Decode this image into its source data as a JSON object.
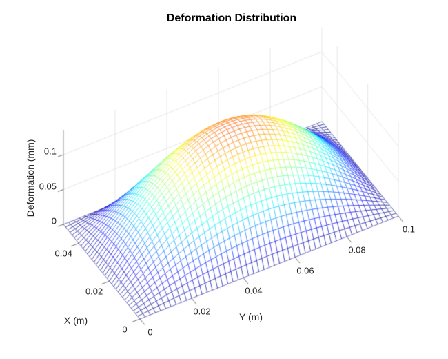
{
  "chart_data": {
    "type": "surface-mesh-3d",
    "title": "Deformation Distribution",
    "xlabel": "X (m)",
    "ylabel": "Y (m)",
    "zlabel": "Deformation (mm)",
    "x_range_m": [
      0,
      0.05
    ],
    "y_range_m": [
      0,
      0.1
    ],
    "z_range_mm": [
      0,
      0.135
    ],
    "x_ticks": [
      0,
      0.02,
      0.04
    ],
    "y_ticks": [
      0,
      0.02,
      0.04,
      0.06,
      0.08,
      0.1
    ],
    "z_ticks": [
      0,
      0.05,
      0.1
    ],
    "grid": true,
    "legend": false,
    "colormap": "jet",
    "color_limits_mm": [
      0,
      0.17
    ],
    "surface_model": {
      "formula": "w(x,y) = W0 * sin(pi*x/Lx) * sin(pi*y/Ly)",
      "W0_peak_mm": 0.135,
      "Lx_m": 0.05,
      "Ly_m": 0.1,
      "mesh_cells_x": 35,
      "mesh_cells_y": 50
    },
    "x_samples_m": [
      0,
      0.0125,
      0.025,
      0.0375,
      0.05
    ],
    "y_samples_m": [
      0,
      0.0125,
      0.025,
      0.0375,
      0.05,
      0.0625,
      0.075,
      0.0875,
      0.1
    ],
    "z_samples_mm": [
      [
        0,
        0,
        0,
        0,
        0,
        0,
        0,
        0,
        0
      ],
      [
        0,
        0.0365,
        0.0675,
        0.0882,
        0.0955,
        0.0882,
        0.0675,
        0.0365,
        0
      ],
      [
        0,
        0.0517,
        0.0955,
        0.1247,
        0.135,
        0.1247,
        0.0955,
        0.0517,
        0
      ],
      [
        0,
        0.0365,
        0.0675,
        0.0882,
        0.0955,
        0.0882,
        0.0675,
        0.0365,
        0
      ],
      [
        0,
        0,
        0,
        0,
        0,
        0,
        0,
        0,
        0
      ]
    ],
    "view": {
      "projection": "orthographic",
      "azimuth_deg": -37.5,
      "elevation_deg": 30
    }
  },
  "colors": {
    "background": "#ffffff",
    "grid_line": "#e4e4e4",
    "axis_line": "#8f8f8f",
    "tick_mark": "#6e6e6e",
    "tick_text": "#262626",
    "title_text": "#000000",
    "mesh_face": "#ffffff"
  }
}
